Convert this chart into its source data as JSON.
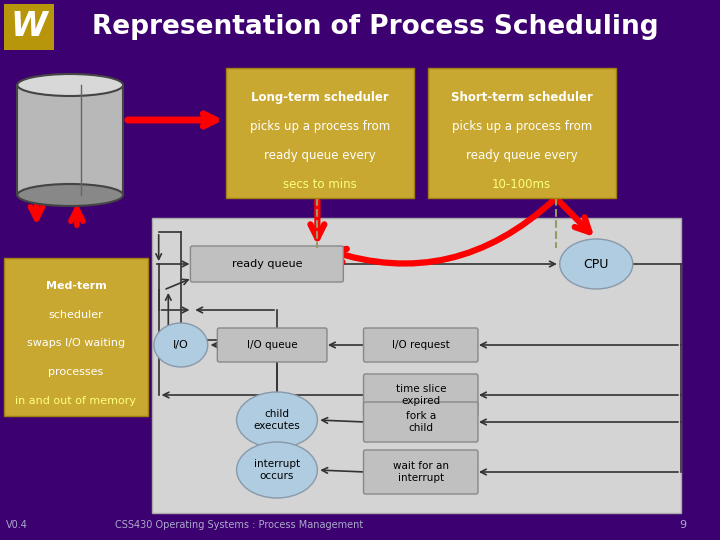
{
  "title": "Representation of Process Scheduling",
  "bg_color": "#3d0070",
  "title_color": "#ffffff",
  "footer_text": "CSS430 Operating Systems : Process Management",
  "footer_page": "9",
  "version": "V0.4",
  "gold_color": "#c8a830",
  "diagram_bg": "#d0d0d0",
  "box_color": "#b8b8b8",
  "ellipse_color": "#a8c8e8",
  "long_term_text": "Long-term scheduler\npicks up a process from\nready queue every\nsecs to mins",
  "short_term_text": "Short-term scheduler\npicks up a process from\nready queue every\n10-100ms",
  "med_term_text": "Med-term\nscheduler\nswaps I/O waiting\nprocesses\nin and out of memory"
}
